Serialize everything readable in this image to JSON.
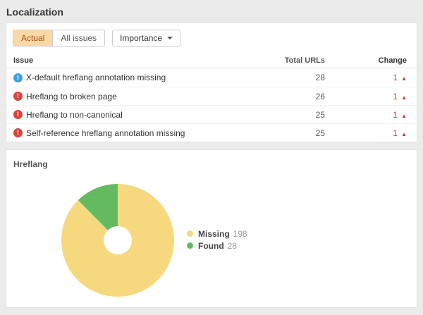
{
  "page": {
    "title": "Localization"
  },
  "toolbar": {
    "tabs": [
      {
        "label": "Actual",
        "active": true
      },
      {
        "label": "All issues",
        "active": false
      }
    ],
    "importance_label": "Importance"
  },
  "issues_table": {
    "columns": {
      "issue": "Issue",
      "total_urls": "Total URLs",
      "change": "Change"
    },
    "severity_icons": {
      "info": "i",
      "error": "!"
    },
    "trend_up_glyph": "▲",
    "rows": [
      {
        "severity": "info",
        "issue": "X-default hreflang annotation missing",
        "total_urls": 28,
        "change": 1
      },
      {
        "severity": "error",
        "issue": "Hreflang to broken page",
        "total_urls": 26,
        "change": 1
      },
      {
        "severity": "error",
        "issue": "Hreflang to non-canonical",
        "total_urls": 25,
        "change": 1
      },
      {
        "severity": "error",
        "issue": "Self-reference hreflang annotation missing",
        "total_urls": 25,
        "change": 1
      }
    ]
  },
  "chart_panel": {
    "title": "Hreflang"
  },
  "chart_data": {
    "type": "pie",
    "donut": true,
    "start_angle": "top",
    "direction": "clockwise",
    "legend_position": "right",
    "slices": [
      {
        "label": "Missing",
        "value": 198,
        "color": "#f6d97e"
      },
      {
        "label": "Found",
        "value": 28,
        "color": "#64ba5e"
      }
    ]
  },
  "colors": {
    "page_background": "#ebebeb",
    "panel_background": "#ffffff",
    "active_tab_background": "#fbd9a6",
    "active_tab_text": "#a14f1a",
    "change_text": "#cf4436",
    "info_icon": "#41a0dc",
    "error_icon": "#d6443e"
  }
}
